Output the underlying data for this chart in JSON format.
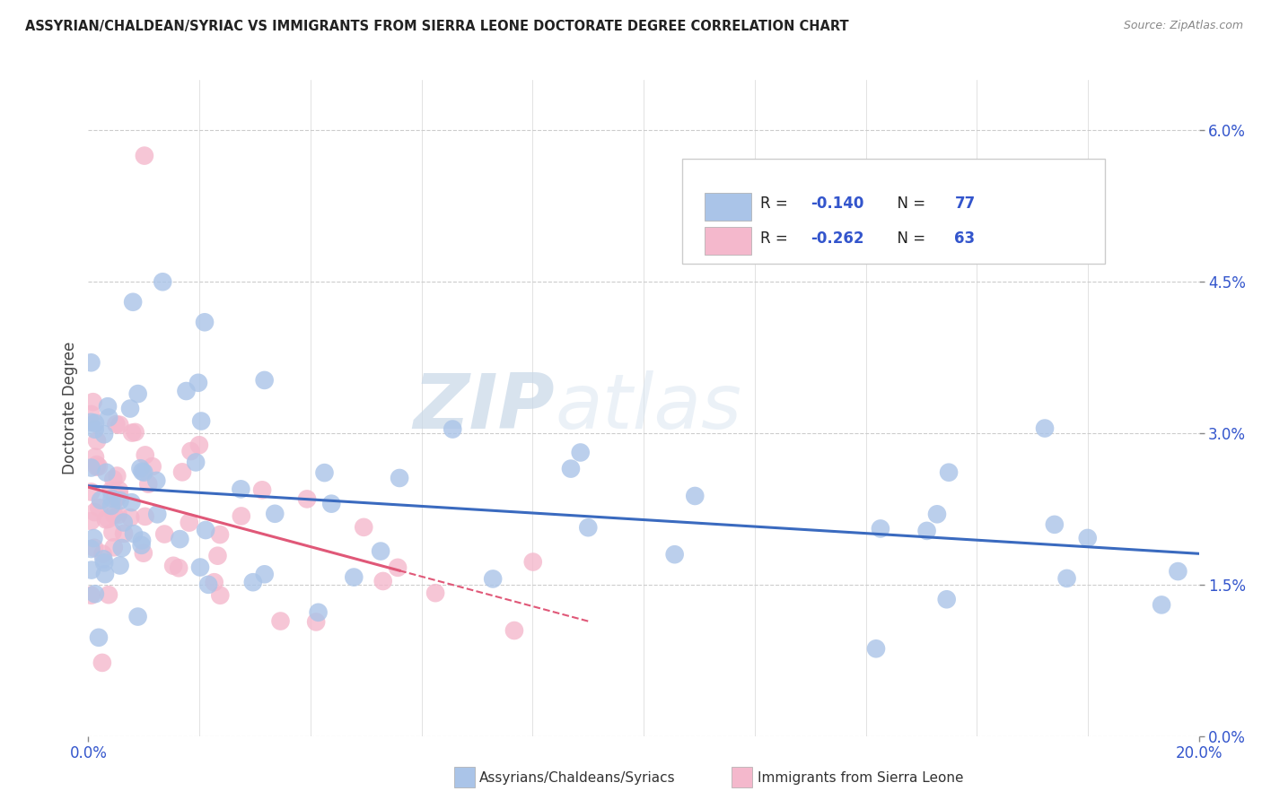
{
  "title": "ASSYRIAN/CHALDEAN/SYRIAC VS IMMIGRANTS FROM SIERRA LEONE DOCTORATE DEGREE CORRELATION CHART",
  "source": "Source: ZipAtlas.com",
  "ylabel": "Doctorate Degree",
  "ylabel_right_vals": [
    0.0,
    1.5,
    3.0,
    4.5,
    6.0
  ],
  "xlim": [
    0.0,
    20.0
  ],
  "ylim": [
    0.0,
    6.5
  ],
  "color_blue": "#aac4e8",
  "color_pink": "#f4b8cc",
  "trendline_blue_color": "#3a6abf",
  "trendline_pink_color": "#e05878",
  "legend_label_blue": "Assyrians/Chaldeans/Syriacs",
  "legend_label_pink": "Immigrants from Sierra Leone",
  "legend_r_color": "#3355aa",
  "legend_n_color": "#3355aa",
  "grid_color": "#cccccc",
  "background_color": "#ffffff",
  "watermark_zip": "ZIP",
  "watermark_atlas": "atlas",
  "seed": 99
}
